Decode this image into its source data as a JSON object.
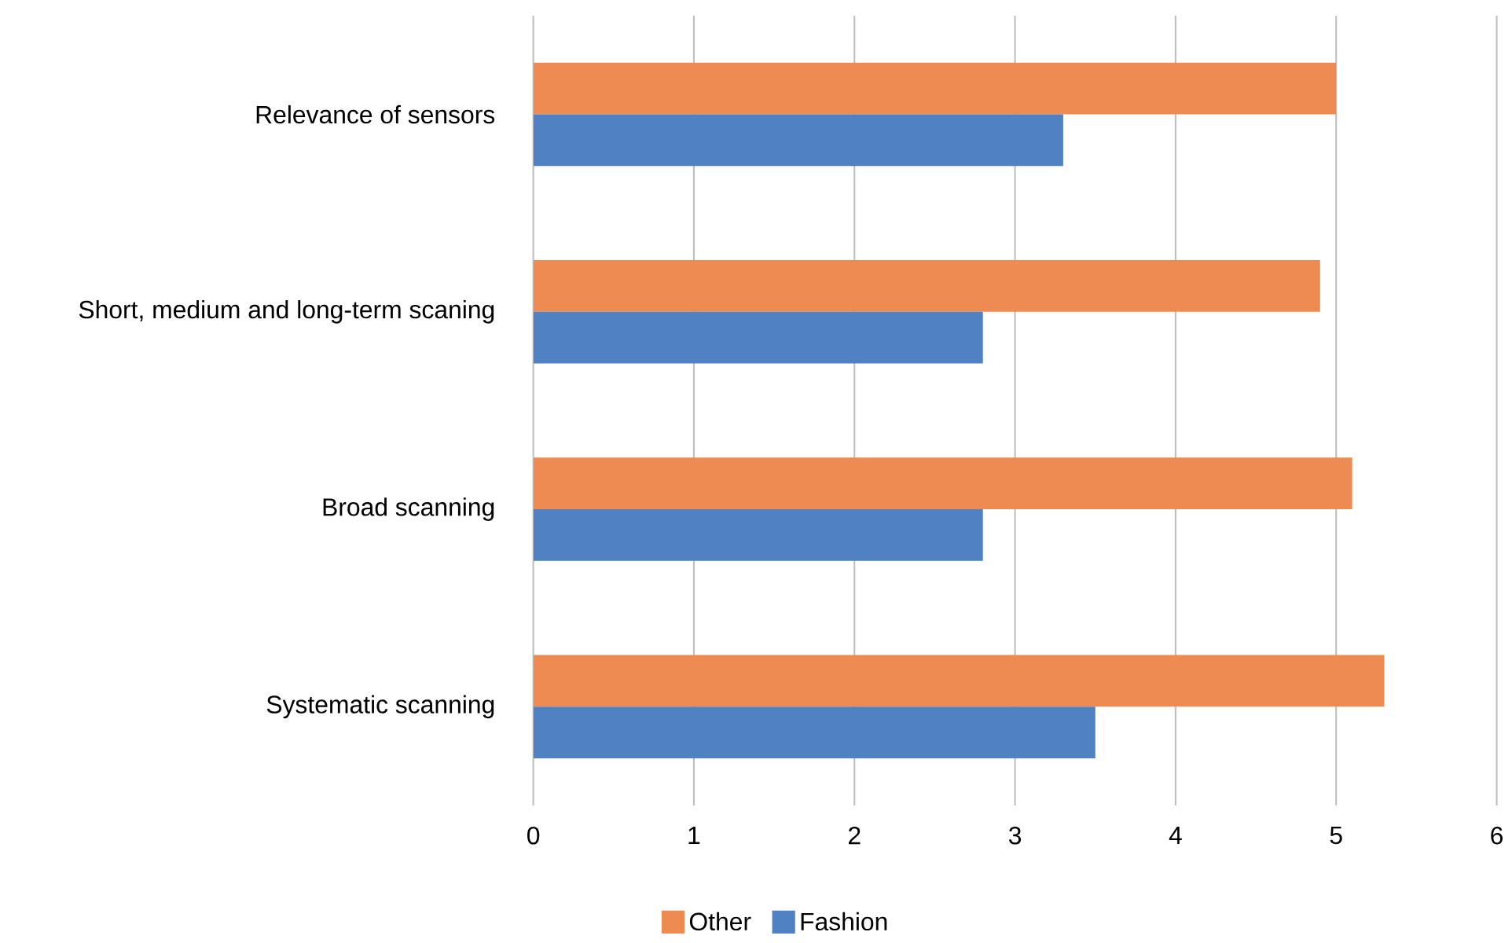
{
  "chart_data": {
    "type": "bar",
    "orientation": "horizontal",
    "categories": [
      "Relevance of sensors",
      "Short, medium and long-term scaning",
      "Broad scanning",
      "Systematic scanning"
    ],
    "series": [
      {
        "name": "Other",
        "color": "#ed8b52",
        "values": [
          5.0,
          4.9,
          5.1,
          5.3
        ]
      },
      {
        "name": "Fashion",
        "color": "#4f81c3",
        "values": [
          3.3,
          2.8,
          2.8,
          3.5
        ]
      }
    ],
    "xlim": [
      0,
      6
    ],
    "xticks": [
      0,
      1,
      2,
      3,
      4,
      5,
      6
    ],
    "grid": "x",
    "legend": "bottom"
  }
}
